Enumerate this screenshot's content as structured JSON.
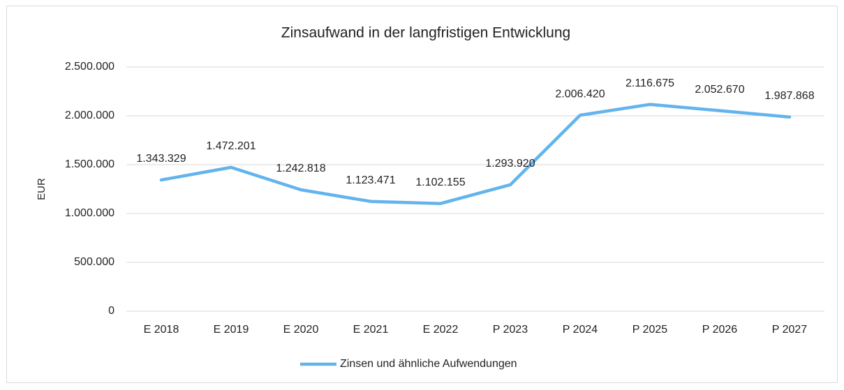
{
  "chart_data": {
    "type": "line",
    "title": "Zinsaufwand in der langfristigen Entwicklung",
    "y_label": "EUR",
    "categories": [
      "E 2018",
      "E 2019",
      "E 2020",
      "E 2021",
      "E 2022",
      "P 2023",
      "P 2024",
      "P 2025",
      "P 2026",
      "P 2027"
    ],
    "series": [
      {
        "name": "Zinsen und ähnliche Aufwendungen",
        "color": "#63b3ed",
        "values": [
          1343329,
          1472201,
          1242818,
          1123471,
          1102155,
          1293920,
          2006420,
          2116675,
          2052670,
          1987868
        ],
        "value_labels": [
          "1.343.329",
          "1.472.201",
          "1.242.818",
          "1.123.471",
          "1.102.155",
          "1.293.920",
          "2.006.420",
          "2.116.675",
          "2.052.670",
          "1.987.868"
        ]
      }
    ],
    "ylim": [
      0,
      2500000
    ],
    "yticks": [
      0,
      {
        "value": 500000,
        "label": "500.000"
      },
      {
        "value": 1000000,
        "label": "1.000.000"
      },
      {
        "value": 1500000,
        "label": "1.500.000"
      },
      {
        "value": 2000000,
        "label": "2.000.000"
      },
      {
        "value": 2500000,
        "label": "2.500.000"
      }
    ],
    "grid": true,
    "legend": "bottom"
  }
}
